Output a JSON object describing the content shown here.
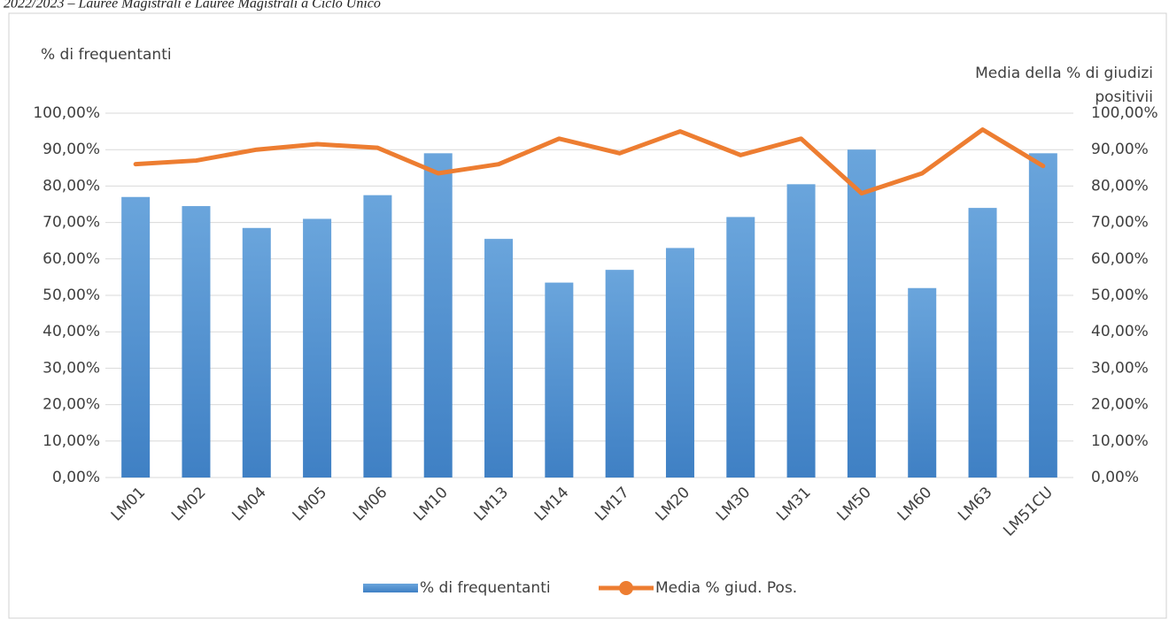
{
  "caption": "2022/2023 – Lauree Magistrali e Lauree Magistrali a Ciclo Unico",
  "chart_data": {
    "type": "bar-line",
    "ylabel": "% di frequentanti",
    "y2label": [
      "Media della % di giudizi",
      "positivii"
    ],
    "categories": [
      "LM01",
      "LM02",
      "LM04",
      "LM05",
      "LM06",
      "LM10",
      "LM13",
      "LM14",
      "LM17",
      "LM20",
      "LM30",
      "LM31",
      "LM50",
      "LM60",
      "LM63",
      "LM51CU"
    ],
    "series": [
      {
        "name": "% di frequentanti",
        "type": "bar",
        "color": "#5b9bd5",
        "values": [
          77,
          74.5,
          68.5,
          71,
          77.5,
          89,
          65.5,
          53.5,
          57,
          63,
          71.5,
          80.5,
          90,
          52,
          74,
          89
        ]
      },
      {
        "name": "Media % giud. Pos.",
        "type": "line",
        "color": "#ed7d31",
        "axis": "y2",
        "values": [
          86,
          87,
          90,
          91.5,
          90.5,
          83.5,
          86,
          93,
          89,
          95,
          88.5,
          93,
          78,
          83.5,
          95.5,
          85.5
        ]
      }
    ],
    "ylim": [
      0,
      100
    ],
    "yticks": [
      {
        "value": 0,
        "label": "0,00%"
      },
      {
        "value": 10,
        "label": "10,00%"
      },
      {
        "value": 20,
        "label": "20,00%"
      },
      {
        "value": 30,
        "label": "30,00%"
      },
      {
        "value": 40,
        "label": "40,00%"
      },
      {
        "value": 50,
        "label": "50,00%"
      },
      {
        "value": 60,
        "label": "60,00%"
      },
      {
        "value": 70,
        "label": "70,00%"
      },
      {
        "value": 80,
        "label": "80,00%"
      },
      {
        "value": 90,
        "label": "90,00%"
      },
      {
        "value": 100,
        "label": "100,00%"
      }
    ],
    "y2lim": [
      0,
      100
    ],
    "y2ticks": [
      {
        "value": 0,
        "label": "0,00%"
      },
      {
        "value": 10,
        "label": "10,00%"
      },
      {
        "value": 20,
        "label": "20,00%"
      },
      {
        "value": 30,
        "label": "30,00%"
      },
      {
        "value": 40,
        "label": "40,00%"
      },
      {
        "value": 50,
        "label": "50,00%"
      },
      {
        "value": 60,
        "label": "60,00%"
      },
      {
        "value": 70,
        "label": "70,00%"
      },
      {
        "value": 80,
        "label": "80,00%"
      },
      {
        "value": 90,
        "label": "90,00%"
      },
      {
        "value": 100,
        "label": "100,00%"
      }
    ],
    "grid": true,
    "legend": "bottom"
  }
}
